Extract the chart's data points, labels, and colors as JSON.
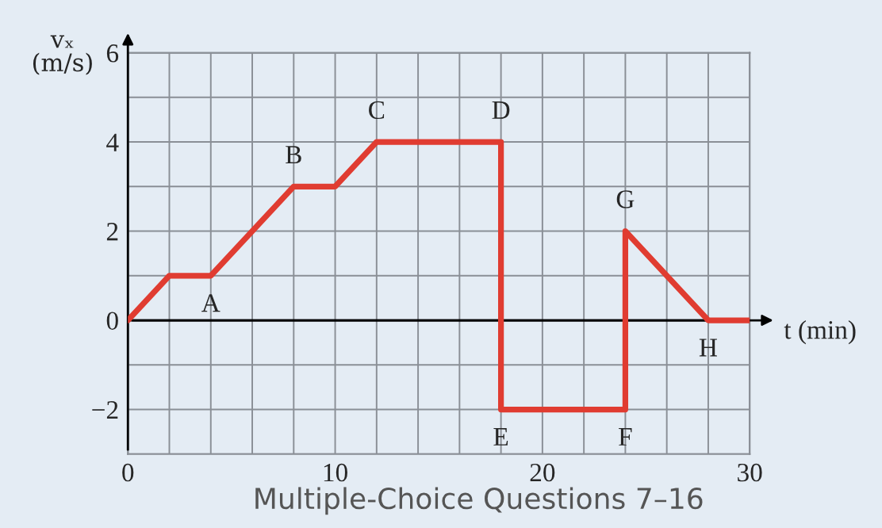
{
  "chart_data": {
    "type": "line",
    "ylabel": "vₓ\n(m/s)",
    "xlabel": "t (min)",
    "x": [
      0,
      2,
      4,
      8,
      10,
      12,
      18,
      18,
      24,
      24,
      28,
      30
    ],
    "series": [
      {
        "color": "#e03c31",
        "values": [
          0,
          1,
          1,
          3,
          3,
          4,
          4,
          -2,
          -2,
          2,
          0,
          0
        ]
      }
    ],
    "xlim": [
      0,
      30
    ],
    "ylim": [
      -3,
      6
    ],
    "xticks": [
      0,
      {
        "value": 2,
        "label": null
      },
      {
        "value": 4,
        "label": null
      },
      {
        "value": 6,
        "label": null
      },
      {
        "value": 8,
        "label": null
      },
      10,
      {
        "value": 12,
        "label": null
      },
      {
        "value": 14,
        "label": null
      },
      {
        "value": 16,
        "label": null
      },
      {
        "value": 18,
        "label": null
      },
      20,
      {
        "value": 22,
        "label": null
      },
      {
        "value": 24,
        "label": null
      },
      {
        "value": 26,
        "label": null
      },
      {
        "value": 28,
        "label": null
      },
      30
    ],
    "yticks": [
      {
        "value": -3,
        "label": null
      },
      -2,
      {
        "value": -1,
        "label": null
      },
      0,
      {
        "value": 1,
        "label": null
      },
      2,
      {
        "value": 3,
        "label": null
      },
      4,
      {
        "value": 5,
        "label": null
      },
      6
    ],
    "grid": true,
    "marker": "none",
    "line_style": "solid",
    "annotations": [
      {
        "text": "A",
        "x": 4,
        "y": 1
      },
      {
        "text": "B",
        "x": 8,
        "y": 3
      },
      {
        "text": "C",
        "x": 12,
        "y": 4
      },
      {
        "text": "D",
        "x": 18,
        "y": 4
      },
      {
        "text": "E",
        "x": 18,
        "y": -2
      },
      {
        "text": "F",
        "x": 24,
        "y": -2
      },
      {
        "text": "G",
        "x": 24,
        "y": 2
      },
      {
        "text": "H",
        "x": 28,
        "y": 0
      },
      "Multiple-Choice Questions 7–16"
    ]
  }
}
